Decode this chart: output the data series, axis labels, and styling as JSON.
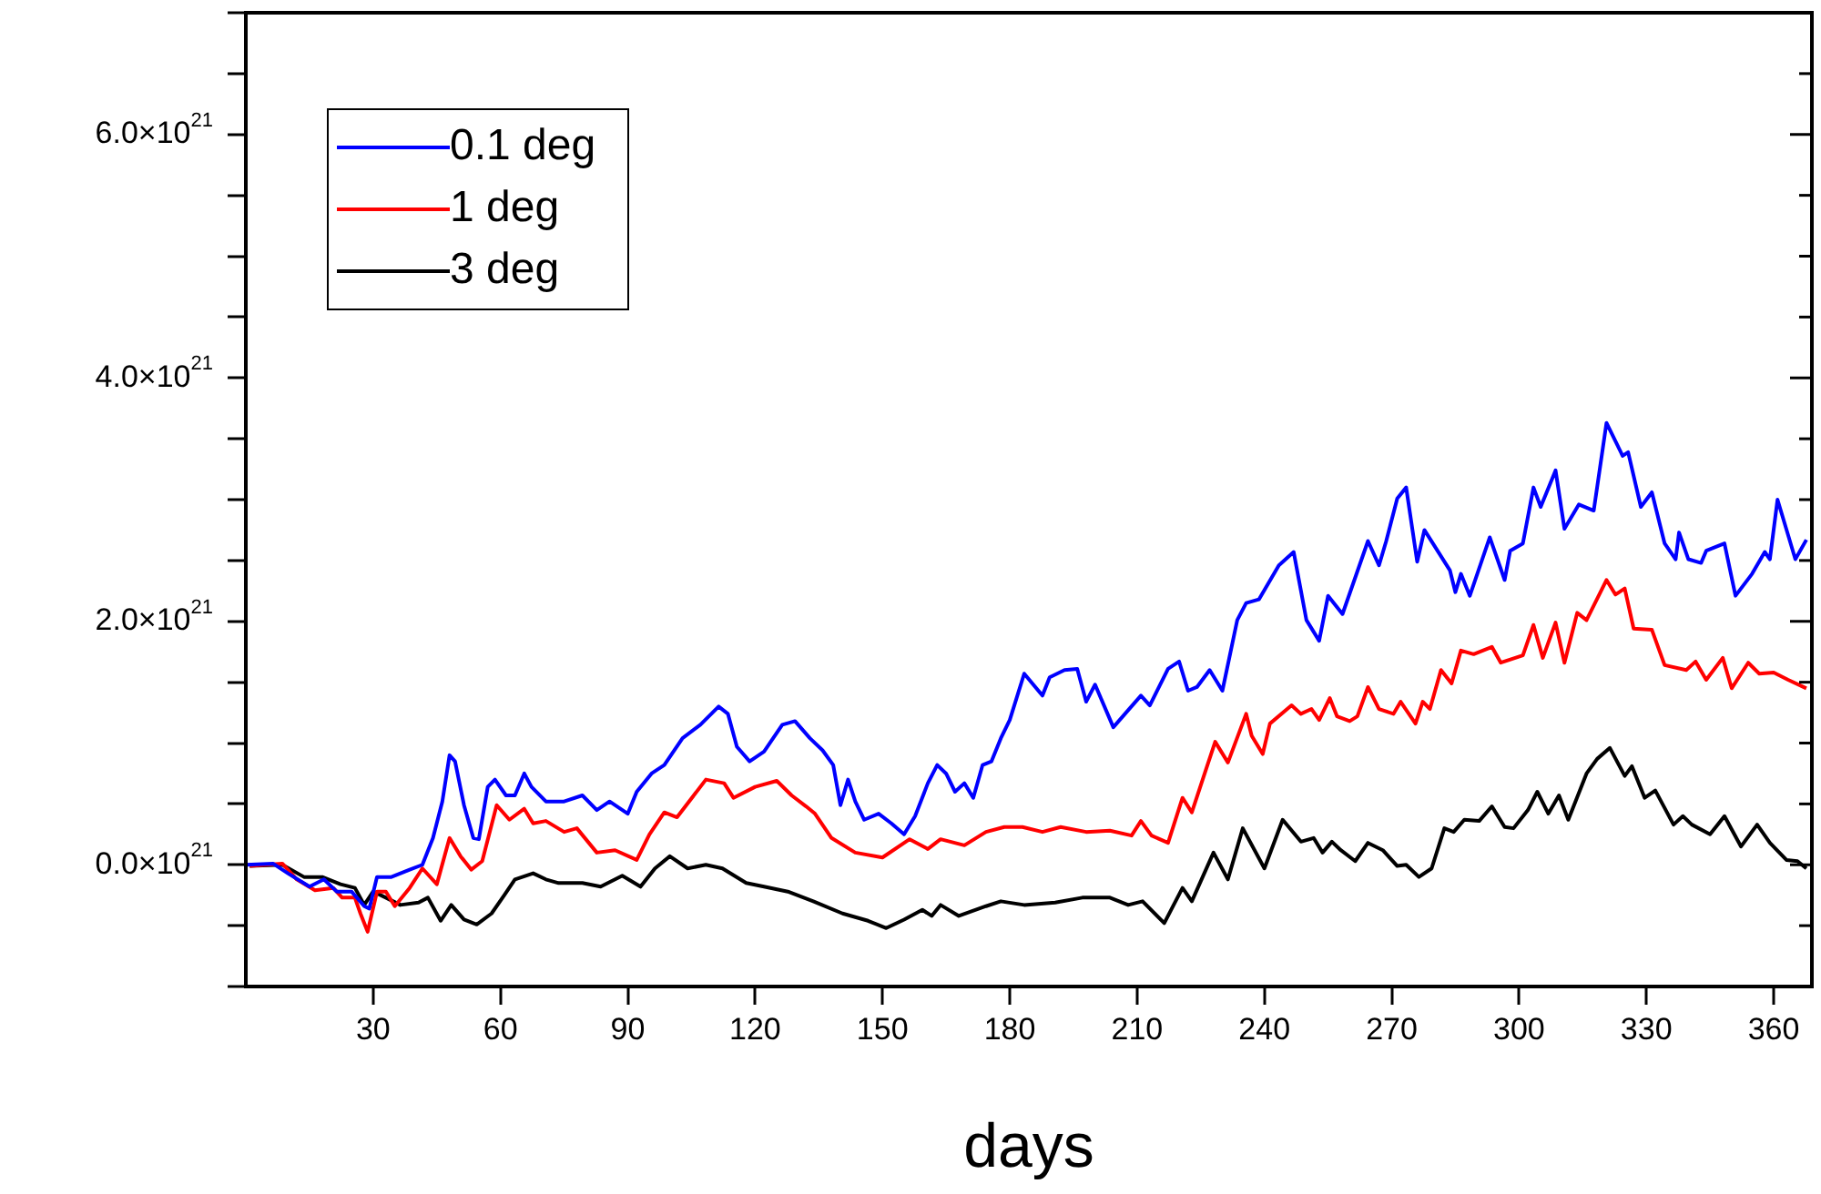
{
  "chart_data": {
    "type": "line",
    "xlabel": "days",
    "xlim": [
      0,
      369
    ],
    "xticks": [
      30,
      60,
      90,
      120,
      150,
      180,
      210,
      240,
      270,
      300,
      330,
      360
    ],
    "ylim": [
      -1e+21,
      7e+21
    ],
    "yticks": [
      {
        "value": -1e+21,
        "label": null
      },
      {
        "value": -5e+20,
        "label": null
      },
      {
        "value": 0,
        "label": "0.0×10$^{21}$"
      },
      {
        "value": 5e+20,
        "label": null
      },
      {
        "value": 1e+21,
        "label": null
      },
      {
        "value": 1.5e+21,
        "label": null
      },
      {
        "value": 2e+21,
        "label": "2.0×10$^{21}$"
      },
      {
        "value": 2.5e+21,
        "label": null
      },
      {
        "value": 3e+21,
        "label": null
      },
      {
        "value": 3.5e+21,
        "label": null
      },
      {
        "value": 4e+21,
        "label": "4.0×10$^{21}$"
      },
      {
        "value": 4.5e+21,
        "label": null
      },
      {
        "value": 5e+21,
        "label": null
      },
      {
        "value": 5.5e+21,
        "label": null
      },
      {
        "value": 6e+21,
        "label": "6.0×10$^{21}$"
      },
      {
        "value": 6.5e+21,
        "label": null
      },
      {
        "value": 7e+21,
        "label": null
      }
    ],
    "grid": false,
    "legend": "top left",
    "marker": "none",
    "line_style": "solid",
    "series": [
      {
        "name": "0.1 deg",
        "color": "#0000ff",
        "x": [
          0,
          6.4,
          9.9,
          15.0,
          18.4,
          21.4,
          24.9,
          27.9,
          29.1,
          30.9,
          34.3,
          38.6,
          41.6,
          44.1,
          46.3,
          48.0,
          49.3,
          51.4,
          53.6,
          54.9,
          57.0,
          58.7,
          61.3,
          63.4,
          65.6,
          67.3,
          70.7,
          75.0,
          79.3,
          82.7,
          85.7,
          90.0,
          92.1,
          95.6,
          98.6,
          102.9,
          107.1,
          111.4,
          113.6,
          115.7,
          118.7,
          122.1,
          126.4,
          129.4,
          132.9,
          135.9,
          138.4,
          140.1,
          141.9,
          143.6,
          145.7,
          149.1,
          152.1,
          155.1,
          157.7,
          160.7,
          162.9,
          165.0,
          167.1,
          169.3,
          171.4,
          173.6,
          175.7,
          177.9,
          180.0,
          183.4,
          187.7,
          189.4,
          192.9,
          195.9,
          198.0,
          200.1,
          204.4,
          207.9,
          210.9,
          213.0,
          217.3,
          219.9,
          222.0,
          224.1,
          227.1,
          230.1,
          233.6,
          235.7,
          238.7,
          243.4,
          246.9,
          249.9,
          252.9,
          255.0,
          258.4,
          264.4,
          267.0,
          268.7,
          271.3,
          273.4,
          276.0,
          277.7,
          283.7,
          285.0,
          286.3,
          288.4,
          293.1,
          296.6,
          297.9,
          300.9,
          303.4,
          305.1,
          308.6,
          310.7,
          314.1,
          317.6,
          320.6,
          324.4,
          325.7,
          328.7,
          331.3,
          334.3,
          336.9,
          337.7,
          339.9,
          342.9,
          344.1,
          348.4,
          351.0,
          354.9,
          357.9,
          359.1,
          360.9,
          365.1,
          367.7
        ],
        "values": [
          0,
          1e+19,
          -7e+19,
          -1.8e+20,
          -1.2e+20,
          -2.2e+20,
          -2.2e+20,
          -3.4e+20,
          -3.6e+20,
          -1e+20,
          -1e+20,
          -4e+19,
          0,
          2.2e+20,
          5.2e+20,
          9e+20,
          8.5e+20,
          4.9e+20,
          2.2e+20,
          2.1e+20,
          6.4e+20,
          7e+20,
          5.7e+20,
          5.7e+20,
          7.5e+20,
          6.4e+20,
          5.2e+20,
          5.2e+20,
          5.7e+20,
          4.5e+20,
          5.2e+20,
          4.2e+20,
          6e+20,
          7.5e+20,
          8.2e+20,
          1.04e+21,
          1.15e+21,
          1.3e+21,
          1.24e+21,
          9.7e+20,
          8.5e+20,
          9.3e+20,
          1.15e+21,
          1.18e+21,
          1.04e+21,
          9.4e+20,
          8.2e+20,
          4.9e+20,
          7e+20,
          5.2e+20,
          3.7e+20,
          4.2e+20,
          3.4e+20,
          2.5e+20,
          4e+20,
          6.7e+20,
          8.2e+20,
          7.5e+20,
          6e+20,
          6.7e+20,
          5.5e+20,
          8.2e+20,
          8.5e+20,
          1.04e+21,
          1.19e+21,
          1.57e+21,
          1.39e+21,
          1.54e+21,
          1.6e+21,
          1.61e+21,
          1.34e+21,
          1.48e+21,
          1.13e+21,
          1.27e+21,
          1.39e+21,
          1.31e+21,
          1.61e+21,
          1.67e+21,
          1.43e+21,
          1.46e+21,
          1.6e+21,
          1.43e+21,
          2.01e+21,
          2.15e+21,
          2.18e+21,
          2.46e+21,
          2.57e+21,
          2.01e+21,
          1.84e+21,
          2.21e+21,
          2.06e+21,
          2.66e+21,
          2.46e+21,
          2.66e+21,
          3.01e+21,
          3.1e+21,
          2.49e+21,
          2.75e+21,
          2.42e+21,
          2.24e+21,
          2.39e+21,
          2.21e+21,
          2.69e+21,
          2.34e+21,
          2.58e+21,
          2.64e+21,
          3.1e+21,
          2.94e+21,
          3.24e+21,
          2.76e+21,
          2.96e+21,
          2.91e+21,
          3.63e+21,
          3.36e+21,
          3.39e+21,
          2.94e+21,
          3.06e+21,
          2.64e+21,
          2.51e+21,
          2.73e+21,
          2.51e+21,
          2.48e+21,
          2.58e+21,
          2.64e+21,
          2.21e+21,
          2.39e+21,
          2.57e+21,
          2.51e+21,
          3e+21,
          2.51e+21,
          2.67e+21
        ]
      },
      {
        "name": "1 deg",
        "color": "#ff0000",
        "x": [
          0.9,
          8.6,
          12.0,
          16.3,
          20.6,
          22.7,
          25.7,
          27.0,
          28.7,
          30.9,
          33.0,
          35.1,
          38.6,
          41.6,
          45.0,
          48.0,
          50.6,
          53.1,
          55.7,
          59.1,
          62.1,
          65.6,
          67.7,
          70.7,
          75.0,
          78.0,
          82.7,
          87.0,
          92.1,
          95.1,
          98.6,
          101.6,
          108.4,
          112.7,
          114.9,
          120.0,
          125.1,
          128.6,
          132.0,
          134.1,
          138.0,
          143.6,
          150.0,
          156.4,
          160.7,
          163.7,
          169.3,
          174.4,
          178.7,
          183.0,
          187.7,
          192.0,
          198.0,
          203.6,
          208.7,
          210.9,
          213.4,
          217.3,
          220.7,
          222.9,
          226.3,
          228.4,
          231.4,
          235.7,
          237.0,
          239.6,
          241.3,
          246.4,
          248.6,
          251.1,
          252.9,
          255.4,
          257.1,
          260.1,
          261.9,
          264.4,
          267.0,
          270.4,
          272.1,
          275.6,
          277.3,
          279.0,
          281.6,
          284.1,
          286.3,
          289.3,
          293.6,
          295.7,
          300.9,
          303.4,
          305.6,
          308.6,
          310.7,
          313.7,
          315.9,
          320.6,
          322.7,
          324.9,
          327.0,
          331.3,
          334.3,
          339.4,
          341.6,
          344.1,
          348.0,
          350.1,
          354.0,
          356.6,
          360.0,
          363.4,
          367.7
        ],
        "values": [
          -1e+19,
          1e+19,
          -1.2e+20,
          -2.1e+20,
          -1.9e+20,
          -2.7e+20,
          -2.7e+20,
          -4e+20,
          -5.5e+20,
          -2.2e+20,
          -2.2e+20,
          -3.4e+20,
          -1.9e+20,
          -3e+19,
          -1.6e+20,
          2.2e+20,
          7e+19,
          -4e+19,
          3e+19,
          4.9e+20,
          3.7e+20,
          4.6e+20,
          3.4e+20,
          3.6e+20,
          2.7e+20,
          3e+20,
          1e+20,
          1.2e+20,
          4e+19,
          2.5e+20,
          4.3e+20,
          3.9e+20,
          7e+20,
          6.7e+20,
          5.5e+20,
          6.4e+20,
          6.9e+20,
          5.7e+20,
          4.8e+20,
          4.2e+20,
          2.2e+20,
          1e+20,
          6e+19,
          2.1e+20,
          1.3e+20,
          2.1e+20,
          1.6e+20,
          2.7e+20,
          3.1e+20,
          3.1e+20,
          2.7e+20,
          3.1e+20,
          2.7e+20,
          2.8e+20,
          2.4e+20,
          3.6e+20,
          2.4e+20,
          1.8e+20,
          5.5e+20,
          4.3e+20,
          7.9e+20,
          1.01e+21,
          8.4e+20,
          1.24e+21,
          1.06e+21,
          9.1e+20,
          1.16e+21,
          1.31e+21,
          1.24e+21,
          1.28e+21,
          1.19e+21,
          1.37e+21,
          1.22e+21,
          1.18e+21,
          1.22e+21,
          1.46e+21,
          1.28e+21,
          1.24e+21,
          1.34e+21,
          1.16e+21,
          1.34e+21,
          1.28e+21,
          1.6e+21,
          1.49e+21,
          1.76e+21,
          1.73e+21,
          1.79e+21,
          1.66e+21,
          1.72e+21,
          1.97e+21,
          1.7e+21,
          1.99e+21,
          1.66e+21,
          2.07e+21,
          2.01e+21,
          2.34e+21,
          2.22e+21,
          2.27e+21,
          1.94e+21,
          1.93e+21,
          1.64e+21,
          1.6e+21,
          1.67e+21,
          1.52e+21,
          1.7e+21,
          1.45e+21,
          1.66e+21,
          1.57e+21,
          1.58e+21,
          1.52e+21,
          1.45e+21
        ]
      },
      {
        "name": "3 deg",
        "color": "#000000",
        "x": [
          0.9,
          8.6,
          13.7,
          18.0,
          22.3,
          25.7,
          27.9,
          30.0,
          33.0,
          36.4,
          40.7,
          42.9,
          45.9,
          48.4,
          51.4,
          54.4,
          57.9,
          60.9,
          63.4,
          67.7,
          70.7,
          73.7,
          79.3,
          83.6,
          88.7,
          93.0,
          96.4,
          99.9,
          104.1,
          108.4,
          112.3,
          117.9,
          122.1,
          127.7,
          133.7,
          140.6,
          146.6,
          150.9,
          155.1,
          159.4,
          161.6,
          163.7,
          168.0,
          174.4,
          177.9,
          183.4,
          190.7,
          197.1,
          203.6,
          207.9,
          211.3,
          216.4,
          220.7,
          222.9,
          228.0,
          231.4,
          234.9,
          240.0,
          244.3,
          248.6,
          251.6,
          253.7,
          255.9,
          258.0,
          261.4,
          264.4,
          267.9,
          271.3,
          273.4,
          276.4,
          279.4,
          282.4,
          284.6,
          287.1,
          290.6,
          293.6,
          296.6,
          298.7,
          302.1,
          304.3,
          306.9,
          309.4,
          311.6,
          315.9,
          318.4,
          321.4,
          324.9,
          326.6,
          329.6,
          332.1,
          336.4,
          338.6,
          340.7,
          345.0,
          348.4,
          352.3,
          356.1,
          359.1,
          363.0,
          365.6,
          367.7
        ],
        "values": [
          -1e+19,
          0,
          -1e+20,
          -1e+20,
          -1.6e+20,
          -1.9e+20,
          -3.3e+20,
          -2.2e+20,
          -2.7e+20,
          -3.3e+20,
          -3.1e+20,
          -2.7e+20,
          -4.6e+20,
          -3.3e+20,
          -4.5e+20,
          -4.9e+20,
          -4e+20,
          -2.5e+20,
          -1.2e+20,
          -7e+19,
          -1.2e+20,
          -1.5e+20,
          -1.5e+20,
          -1.8e+20,
          -9e+19,
          -1.8e+20,
          -3e+19,
          7e+19,
          -3e+19,
          0,
          -3e+19,
          -1.5e+20,
          -1.8e+20,
          -2.2e+20,
          -3e+20,
          -4e+20,
          -4.6e+20,
          -5.2e+20,
          -4.5e+20,
          -3.7e+20,
          -4.2e+20,
          -3.3e+20,
          -4.2e+20,
          -3.4e+20,
          -3e+20,
          -3.3e+20,
          -3.1e+20,
          -2.7e+20,
          -2.7e+20,
          -3.3e+20,
          -3e+20,
          -4.8e+20,
          -1.9e+20,
          -3e+20,
          1e+20,
          -1.2e+20,
          3e+20,
          -3e+19,
          3.7e+20,
          1.9e+20,
          2.2e+20,
          1e+20,
          1.9e+20,
          1.2e+20,
          3e+19,
          1.8e+20,
          1.2e+20,
          -1e+19,
          0,
          -1e+20,
          -3e+19,
          3e+20,
          2.7e+20,
          3.7e+20,
          3.6e+20,
          4.8e+20,
          3.1e+20,
          3e+20,
          4.5e+20,
          6e+20,
          4.2e+20,
          5.7e+20,
          3.7e+20,
          7.5e+20,
          8.7e+20,
          9.6e+20,
          7.3e+20,
          8.1e+20,
          5.5e+20,
          6.1e+20,
          3.3e+20,
          4e+20,
          3.3e+20,
          2.5e+20,
          4e+20,
          1.5e+20,
          3.3e+20,
          1.8e+20,
          4e+19,
          3e+19,
          -3e+19
        ]
      }
    ]
  }
}
